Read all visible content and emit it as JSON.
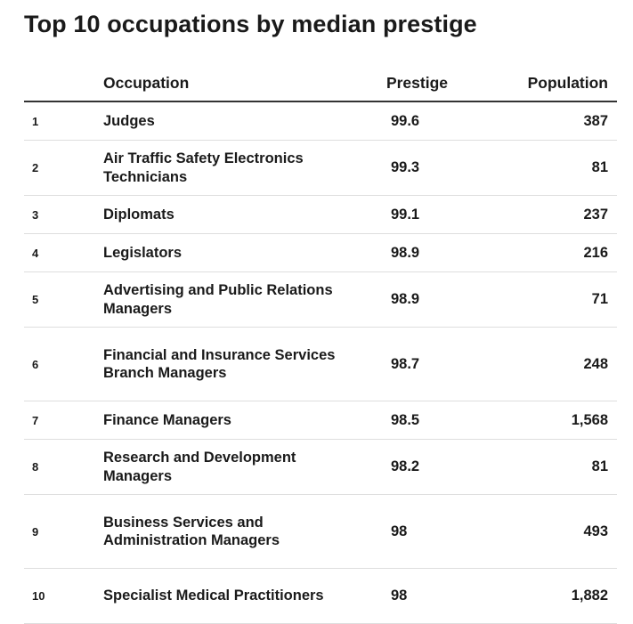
{
  "chart_data": {
    "type": "table",
    "title": "Top 10 occupations by median prestige",
    "columns": [
      "",
      "Occupation",
      "Prestige",
      "Population"
    ],
    "rows": [
      {
        "rank": "1",
        "occupation": "Judges",
        "prestige": "99.6",
        "population": "387"
      },
      {
        "rank": "2",
        "occupation": "Air Traffic Safety Electronics Technicians",
        "prestige": "99.3",
        "population": "81"
      },
      {
        "rank": "3",
        "occupation": "Diplomats",
        "prestige": "99.1",
        "population": "237"
      },
      {
        "rank": "4",
        "occupation": "Legislators",
        "prestige": "98.9",
        "population": "216"
      },
      {
        "rank": "5",
        "occupation": "Advertising and Public Relations Managers",
        "prestige": "98.9",
        "population": "71"
      },
      {
        "rank": "6",
        "occupation": "Financial and Insurance Services Branch Managers",
        "prestige": "98.7",
        "population": "248"
      },
      {
        "rank": "7",
        "occupation": "Finance Managers",
        "prestige": "98.5",
        "population": "1,568"
      },
      {
        "rank": "8",
        "occupation": "Research and Development Managers",
        "prestige": "98.2",
        "population": "81"
      },
      {
        "rank": "9",
        "occupation": "Business Services and Administration Managers",
        "prestige": "98",
        "population": "493"
      },
      {
        "rank": "10",
        "occupation": "Specialist Medical Practitioners",
        "prestige": "98",
        "population": "1,882"
      }
    ]
  }
}
